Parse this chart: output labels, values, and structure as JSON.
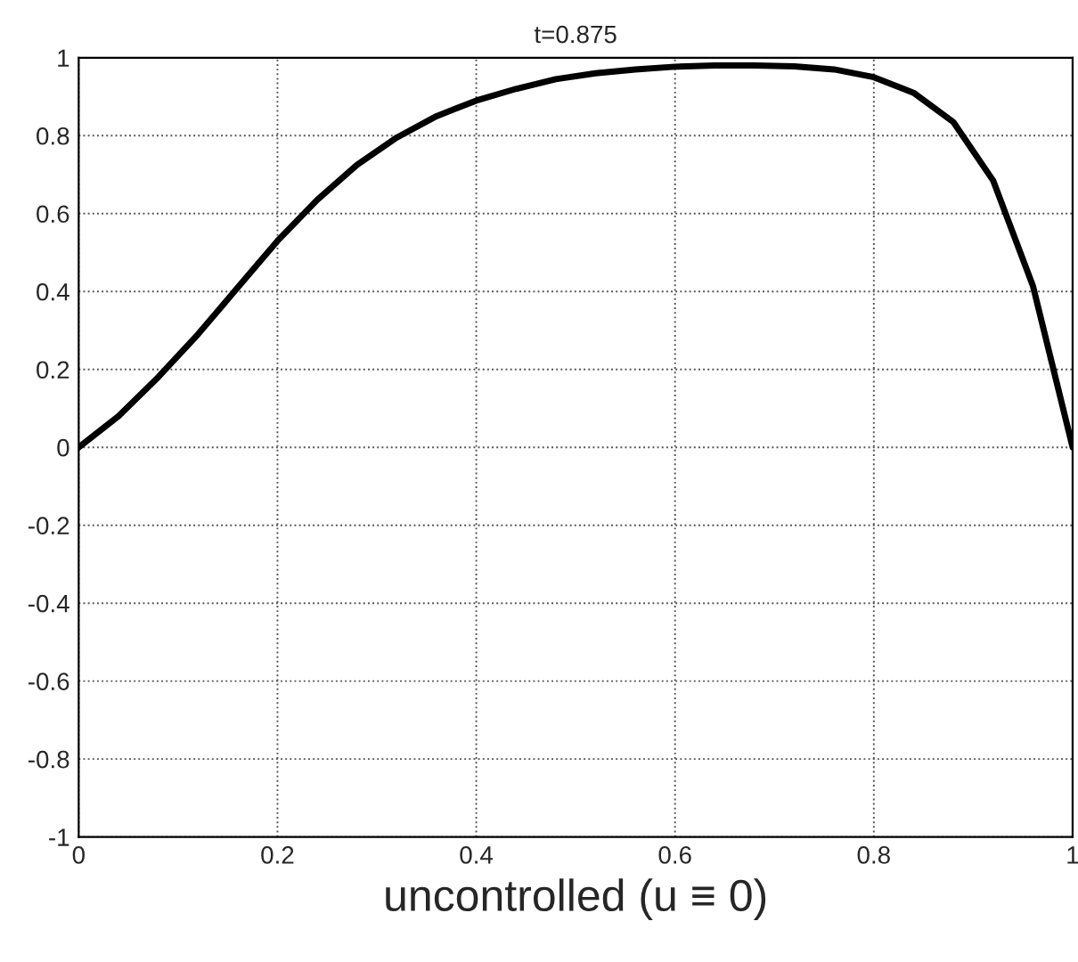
{
  "chart_data": {
    "type": "line",
    "title": "t=0.875",
    "xlabel": "uncontrolled (u ≡ 0)",
    "x": [
      0,
      0.04,
      0.08,
      0.12,
      0.16,
      0.2,
      0.24,
      0.28,
      0.32,
      0.36,
      0.4,
      0.44,
      0.48,
      0.52,
      0.56,
      0.6,
      0.64,
      0.68,
      0.72,
      0.76,
      0.8,
      0.84,
      0.88,
      0.92,
      0.96,
      1.0
    ],
    "series": [
      {
        "color": "#000000",
        "values": [
          0,
          0.08,
          0.18,
          0.29,
          0.41,
          0.53,
          0.635,
          0.725,
          0.795,
          0.85,
          0.89,
          0.92,
          0.945,
          0.96,
          0.97,
          0.977,
          0.98,
          0.98,
          0.978,
          0.97,
          0.95,
          0.91,
          0.835,
          0.685,
          0.415,
          0
        ]
      }
    ],
    "xlim": [
      0,
      1
    ],
    "ylim": [
      -1,
      1
    ],
    "xticks": [
      0,
      0.2,
      0.4,
      0.6,
      0.8,
      1
    ],
    "yticks": [
      -1,
      -0.8,
      -0.6,
      -0.4,
      -0.2,
      0,
      0.2,
      0.4,
      0.6,
      0.8,
      1
    ],
    "grid": true,
    "line_style": "solid",
    "marker": "none"
  }
}
